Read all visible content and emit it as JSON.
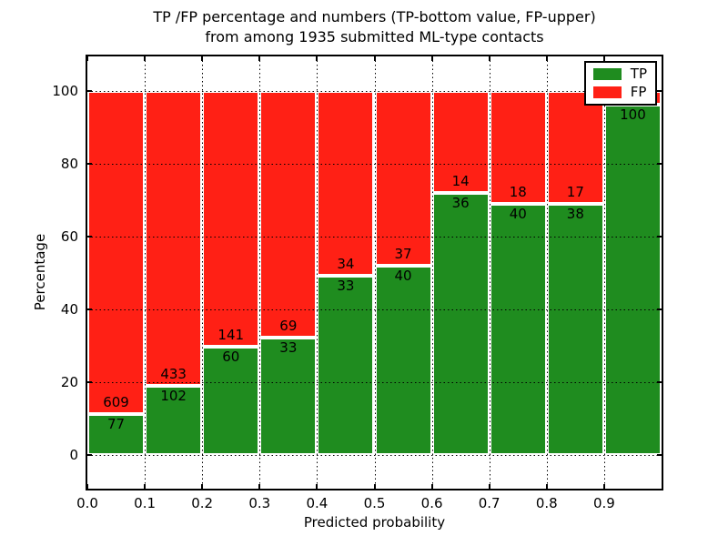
{
  "figure": {
    "title_line1": "TP /FP percentage and numbers (TP-bottom value, FP-upper)",
    "title_line2": "from among 1935 submitted ML-type contacts"
  },
  "chart_data": {
    "type": "bar",
    "stacked": true,
    "title": "TP /FP percentage and numbers (TP-bottom value, FP-upper) from among 1935 submitted ML-type contacts",
    "xlabel": "Predicted probability",
    "ylabel": "Percentage",
    "total_contacts": 1935,
    "bin_edges": [
      0.0,
      0.1,
      0.2,
      0.3,
      0.4,
      0.5,
      0.6,
      0.7,
      0.8,
      0.9,
      1.0
    ],
    "x_tick_labels": [
      "0.0",
      "0.1",
      "0.2",
      "0.3",
      "0.4",
      "0.5",
      "0.6",
      "0.7",
      "0.8",
      "0.9"
    ],
    "y_ticks": [
      "0",
      "20",
      "40",
      "60",
      "80",
      "100"
    ],
    "xlim": [
      0,
      1
    ],
    "ylim": [
      -9.25,
      109.5
    ],
    "grid": {
      "style": "dotted",
      "color": "#000000"
    },
    "series": [
      {
        "name": "TP",
        "color": "#1f8c1f",
        "counts": [
          77,
          102,
          60,
          33,
          33,
          40,
          36,
          40,
          38,
          100
        ]
      },
      {
        "name": "FP",
        "color": "#ff2015",
        "counts": [
          609,
          433,
          141,
          69,
          34,
          37,
          14,
          18,
          17,
          4
        ]
      }
    ],
    "tp_percent": [
      11.2,
      19.1,
      29.9,
      32.4,
      49.3,
      51.9,
      72.0,
      69.0,
      69.1,
      96.2
    ],
    "bar_count_labels": {
      "tp": [
        "77",
        "102",
        "60",
        "33",
        "33",
        "40",
        "36",
        "40",
        "38",
        "100"
      ],
      "fp": [
        "609",
        "433",
        "141",
        "69",
        "34",
        "37",
        "14",
        "18",
        "17",
        ""
      ]
    },
    "legend": {
      "position": "upper right",
      "entries": [
        {
          "label": "TP",
          "color": "#1f8c1f"
        },
        {
          "label": "FP",
          "color": "#ff2015"
        }
      ]
    }
  }
}
